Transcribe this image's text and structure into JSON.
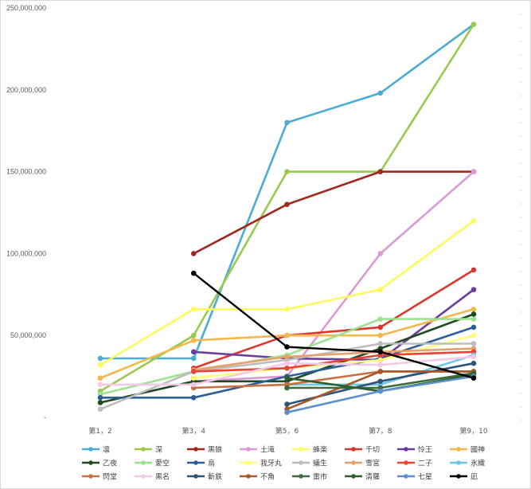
{
  "chart_data": {
    "type": "line",
    "title": "",
    "xlabel": "",
    "ylabel": "",
    "categories": [
      "第1，2",
      "第3，4",
      "第5，6",
      "第7，8",
      "第9，10"
    ],
    "ylim": [
      0,
      250000000
    ],
    "y_ticks": [
      {
        "value": 0,
        "label": "-"
      },
      {
        "value": 50000000,
        "label": "50,000,000"
      },
      {
        "value": 100000000,
        "label": "100,000,000"
      },
      {
        "value": 150000000,
        "label": "150,000,000"
      },
      {
        "value": 200000000,
        "label": "200,000,000"
      },
      {
        "value": 250000000,
        "label": "250,000,000"
      }
    ],
    "grid": false,
    "legend_position": "bottom",
    "series": [
      {
        "name": "凛",
        "color": "#4bacd6",
        "values": [
          36000000,
          36000000,
          180000000,
          198000000,
          240000000
        ]
      },
      {
        "name": "深",
        "color": "#9bc94f",
        "values": [
          16000000,
          50000000,
          150000000,
          150000000,
          240000000
        ]
      },
      {
        "name": "黒狼",
        "color": "#a0291f",
        "values": [
          null,
          100000000,
          130000000,
          150000000,
          150000000
        ]
      },
      {
        "name": "土滝",
        "color": "#d99ad6",
        "values": [
          null,
          22000000,
          25000000,
          100000000,
          150000000
        ]
      },
      {
        "name": "蜂楽",
        "color": "#fffa5c",
        "values": [
          32000000,
          66000000,
          66000000,
          78000000,
          120000000
        ]
      },
      {
        "name": "千切",
        "color": "#d9362c",
        "values": [
          null,
          30000000,
          50000000,
          55000000,
          90000000
        ]
      },
      {
        "name": "怜王",
        "color": "#6d3b9c",
        "values": [
          null,
          40000000,
          36000000,
          35000000,
          78000000
        ]
      },
      {
        "name": "國神",
        "color": "#f2b84b",
        "values": [
          24000000,
          47000000,
          50000000,
          50000000,
          66000000
        ]
      },
      {
        "name": "乙夜",
        "color": "#1f4a1f",
        "values": [
          9000000,
          22000000,
          22000000,
          42000000,
          63000000
        ]
      },
      {
        "name": "愛空",
        "color": "#9ce28f",
        "values": [
          14000000,
          28000000,
          38000000,
          60000000,
          60000000
        ]
      },
      {
        "name": "烏",
        "color": "#2e5e96",
        "values": [
          12000000,
          12000000,
          25000000,
          36000000,
          55000000
        ]
      },
      {
        "name": "我牙丸",
        "color": "#ffff78",
        "values": [
          null,
          24000000,
          30000000,
          35000000,
          50000000
        ]
      },
      {
        "name": "蟻生",
        "color": "#bdbdbd",
        "values": [
          5000000,
          28000000,
          35000000,
          45000000,
          45000000
        ]
      },
      {
        "name": "雪宮",
        "color": "#e6a06b",
        "values": [
          null,
          29000000,
          37000000,
          40000000,
          42000000
        ]
      },
      {
        "name": "二子",
        "color": "#ea4335",
        "values": [
          null,
          28000000,
          30000000,
          38000000,
          40000000
        ]
      },
      {
        "name": "氷織",
        "color": "#6fc7e8",
        "values": [
          null,
          null,
          20000000,
          20000000,
          38000000
        ]
      },
      {
        "name": "閃堂",
        "color": "#c8703f",
        "values": [
          null,
          18000000,
          20000000,
          28000000,
          28000000
        ]
      },
      {
        "name": "黒名",
        "color": "#f4c9e8",
        "values": [
          20000000,
          20000000,
          33000000,
          32000000,
          37000000
        ]
      },
      {
        "name": "斬鉄",
        "color": "#305478",
        "values": [
          null,
          null,
          8000000,
          22000000,
          33000000
        ]
      },
      {
        "name": "不角",
        "color": "#a65a2a",
        "values": [
          null,
          null,
          5000000,
          28000000,
          28000000
        ]
      },
      {
        "name": "雷市",
        "color": "#3a6b3a",
        "values": [
          null,
          null,
          18000000,
          18000000,
          27000000
        ]
      },
      {
        "name": "清羅",
        "color": "#2d5e2d",
        "values": [
          null,
          null,
          24000000,
          16000000,
          26000000
        ]
      },
      {
        "name": "七星",
        "color": "#5b8fcf",
        "values": [
          null,
          null,
          3000000,
          16000000,
          25000000
        ]
      },
      {
        "name": "凪",
        "color": "#000000",
        "values": [
          null,
          88000000,
          43000000,
          40000000,
          24000000
        ]
      }
    ]
  }
}
